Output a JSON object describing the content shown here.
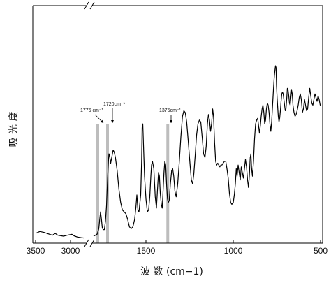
{
  "chart_data": {
    "type": "line",
    "title": "",
    "xlabel": "波 数 (cm−1)",
    "ylabel": "吸 光 度",
    "x_axis": {
      "reversed": true,
      "broken": true,
      "break_between": [
        2800,
        1800
      ],
      "left_segment_range": [
        3500,
        2800
      ],
      "right_segment_range": [
        1800,
        500
      ],
      "ticks": [
        3500,
        3000,
        1500,
        1000,
        500
      ],
      "tick_labels": [
        "3500",
        "3000",
        "1500",
        "1000",
        "500"
      ]
    },
    "y_axis": {
      "ticks_shown": false,
      "range": [
        0,
        100
      ]
    },
    "grid": false,
    "legend": "none",
    "line_color": "#000000",
    "highlight_color": "#bdbdbd",
    "series": [
      {
        "segment": "left",
        "points": [
          [
            3500,
            1.5
          ],
          [
            3440,
            2.5
          ],
          [
            3380,
            2.0
          ],
          [
            3300,
            1.0
          ],
          [
            3260,
            0.5
          ],
          [
            3220,
            1.5
          ],
          [
            3180,
            0.5
          ],
          [
            3100,
            0.0
          ],
          [
            3050,
            0.5
          ],
          [
            2980,
            1.0
          ],
          [
            2950,
            0.2
          ],
          [
            2900,
            -0.5
          ],
          [
            2850,
            -0.8
          ],
          [
            2800,
            -1.0
          ]
        ]
      },
      {
        "segment": "right",
        "points": [
          [
            1800,
            0.0
          ],
          [
            1790,
            0.5
          ],
          [
            1780,
            1.0
          ],
          [
            1770,
            4.0
          ],
          [
            1765,
            9.0
          ],
          [
            1760,
            13.0
          ],
          [
            1755,
            9.0
          ],
          [
            1750,
            4.5
          ],
          [
            1745,
            3.5
          ],
          [
            1738,
            3.5
          ],
          [
            1732,
            8.0
          ],
          [
            1726,
            16.0
          ],
          [
            1720,
            30.0
          ],
          [
            1715,
            40.0
          ],
          [
            1712,
            44.0
          ],
          [
            1708,
            43.0
          ],
          [
            1702,
            39.0
          ],
          [
            1698,
            41.0
          ],
          [
            1692,
            44.0
          ],
          [
            1688,
            46.0
          ],
          [
            1682,
            45.0
          ],
          [
            1675,
            42.0
          ],
          [
            1665,
            35.0
          ],
          [
            1655,
            25.0
          ],
          [
            1645,
            18.0
          ],
          [
            1635,
            14.0
          ],
          [
            1625,
            13.0
          ],
          [
            1615,
            12.0
          ],
          [
            1605,
            9.0
          ],
          [
            1595,
            5.0
          ],
          [
            1585,
            4.0
          ],
          [
            1575,
            5.0
          ],
          [
            1565,
            9.0
          ],
          [
            1558,
            15.0
          ],
          [
            1552,
            22.0
          ],
          [
            1546,
            14.0
          ],
          [
            1540,
            13.0
          ],
          [
            1530,
            22.0
          ],
          [
            1525,
            40.0
          ],
          [
            1522,
            58.0
          ],
          [
            1518,
            60.0
          ],
          [
            1513,
            45.0
          ],
          [
            1508,
            32.0
          ],
          [
            1500,
            20.0
          ],
          [
            1492,
            13.0
          ],
          [
            1485,
            14.0
          ],
          [
            1478,
            21.0
          ],
          [
            1472,
            32.0
          ],
          [
            1468,
            38.0
          ],
          [
            1463,
            40.0
          ],
          [
            1455,
            36.0
          ],
          [
            1447,
            21.0
          ],
          [
            1440,
            15.0
          ],
          [
            1432,
            28.0
          ],
          [
            1428,
            34.0
          ],
          [
            1423,
            32.0
          ],
          [
            1418,
            23.0
          ],
          [
            1412,
            17.0
          ],
          [
            1407,
            15.0
          ],
          [
            1402,
            24.0
          ],
          [
            1397,
            34.0
          ],
          [
            1392,
            40.0
          ],
          [
            1387,
            38.0
          ],
          [
            1382,
            28.0
          ],
          [
            1377,
            20.0
          ],
          [
            1372,
            18.0
          ],
          [
            1367,
            19.0
          ],
          [
            1360,
            28.0
          ],
          [
            1353,
            35.0
          ],
          [
            1347,
            36.0
          ],
          [
            1341,
            32.0
          ],
          [
            1334,
            24.0
          ],
          [
            1327,
            21.0
          ],
          [
            1318,
            28.0
          ],
          [
            1309,
            40.0
          ],
          [
            1300,
            53.0
          ],
          [
            1291,
            64.0
          ],
          [
            1283,
            67.0
          ],
          [
            1275,
            66.0
          ],
          [
            1267,
            61.0
          ],
          [
            1258,
            51.0
          ],
          [
            1249,
            40.0
          ],
          [
            1240,
            30.0
          ],
          [
            1233,
            28.0
          ],
          [
            1226,
            33.0
          ],
          [
            1218,
            43.0
          ],
          [
            1210,
            54.0
          ],
          [
            1202,
            60.0
          ],
          [
            1194,
            62.0
          ],
          [
            1186,
            61.0
          ],
          [
            1178,
            53.0
          ],
          [
            1170,
            44.0
          ],
          [
            1162,
            42.0
          ],
          [
            1155,
            48.0
          ],
          [
            1148,
            60.0
          ],
          [
            1142,
            65.0
          ],
          [
            1136,
            62.0
          ],
          [
            1130,
            56.0
          ],
          [
            1124,
            60.0
          ],
          [
            1118,
            68.0
          ],
          [
            1113,
            64.0
          ],
          [
            1107,
            50.0
          ],
          [
            1101,
            40.0
          ],
          [
            1095,
            38.0
          ],
          [
            1089,
            39.0
          ],
          [
            1083,
            38.0
          ],
          [
            1077,
            37.0
          ],
          [
            1071,
            38.0
          ],
          [
            1065,
            38.0
          ],
          [
            1058,
            39.0
          ],
          [
            1050,
            40.0
          ],
          [
            1043,
            40.0
          ],
          [
            1036,
            36.0
          ],
          [
            1029,
            31.0
          ],
          [
            1022,
            23.0
          ],
          [
            1015,
            18.0
          ],
          [
            1008,
            17.0
          ],
          [
            1000,
            18.0
          ],
          [
            994,
            22.0
          ],
          [
            988,
            28.0
          ],
          [
            983,
            36.0
          ],
          [
            978,
            32.0
          ],
          [
            972,
            38.0
          ],
          [
            966,
            34.0
          ],
          [
            960,
            30.0
          ],
          [
            954,
            37.0
          ],
          [
            948,
            34.0
          ],
          [
            942,
            31.0
          ],
          [
            936,
            36.0
          ],
          [
            930,
            41.0
          ],
          [
            924,
            37.0
          ],
          [
            918,
            30.0
          ],
          [
            913,
            26.0
          ],
          [
            908,
            32.0
          ],
          [
            903,
            42.0
          ],
          [
            899,
            44.0
          ],
          [
            895,
            36.0
          ],
          [
            890,
            32.0
          ],
          [
            884,
            40.0
          ],
          [
            878,
            52.0
          ],
          [
            872,
            60.0
          ],
          [
            866,
            62.0
          ],
          [
            860,
            63.0
          ],
          [
            855,
            59.0
          ],
          [
            850,
            55.0
          ],
          [
            845,
            59.0
          ],
          [
            840,
            64.0
          ],
          [
            835,
            68.0
          ],
          [
            830,
            70.0
          ],
          [
            825,
            66.0
          ],
          [
            820,
            60.0
          ],
          [
            815,
            62.0
          ],
          [
            810,
            68.0
          ],
          [
            805,
            71.0
          ],
          [
            800,
            70.0
          ],
          [
            795,
            66.0
          ],
          [
            790,
            60.0
          ],
          [
            785,
            56.0
          ],
          [
            780,
            61.0
          ],
          [
            775,
            70.0
          ],
          [
            770,
            78.0
          ],
          [
            766,
            84.0
          ],
          [
            762,
            88.0
          ],
          [
            758,
            91.0
          ],
          [
            755,
            90.0
          ],
          [
            752,
            80.0
          ],
          [
            749,
            74.0
          ],
          [
            745,
            68.0
          ],
          [
            742,
            64.0
          ],
          [
            738,
            61.0
          ],
          [
            734,
            63.0
          ],
          [
            730,
            67.0
          ],
          [
            726,
            72.0
          ],
          [
            722,
            76.0
          ],
          [
            718,
            77.0
          ],
          [
            714,
            76.0
          ],
          [
            710,
            73.0
          ],
          [
            706,
            70.0
          ],
          [
            702,
            67.0
          ],
          [
            698,
            68.0
          ],
          [
            694,
            73.0
          ],
          [
            690,
            79.0
          ],
          [
            686,
            78.0
          ],
          [
            682,
            75.0
          ],
          [
            678,
            71.0
          ],
          [
            674,
            70.0
          ],
          [
            670,
            74.0
          ],
          [
            666,
            78.0
          ],
          [
            662,
            76.0
          ],
          [
            658,
            70.0
          ],
          [
            652,
            66.0
          ],
          [
            646,
            64.0
          ],
          [
            640,
            65.0
          ],
          [
            634,
            67.0
          ],
          [
            628,
            70.0
          ],
          [
            622,
            74.0
          ],
          [
            616,
            76.0
          ],
          [
            610,
            73.0
          ],
          [
            604,
            66.0
          ],
          [
            598,
            68.0
          ],
          [
            592,
            73.0
          ],
          [
            586,
            70.0
          ],
          [
            580,
            67.0
          ],
          [
            574,
            68.0
          ],
          [
            568,
            74.0
          ],
          [
            562,
            79.0
          ],
          [
            556,
            75.0
          ],
          [
            550,
            71.0
          ],
          [
            544,
            70.0
          ],
          [
            538,
            73.0
          ],
          [
            532,
            76.0
          ],
          [
            526,
            74.0
          ],
          [
            520,
            72.0
          ],
          [
            514,
            75.0
          ],
          [
            508,
            73.0
          ],
          [
            502,
            70.0
          ],
          [
            500,
            70.0
          ]
        ]
      }
    ],
    "highlights": [
      {
        "center": 1776,
        "width": 16,
        "label": "1776 cm⁻¹"
      },
      {
        "center": 1720,
        "width": 16,
        "label": "1720cm⁻¹"
      },
      {
        "center": 1375,
        "width": 16,
        "label": "1375cm⁻¹"
      }
    ]
  }
}
